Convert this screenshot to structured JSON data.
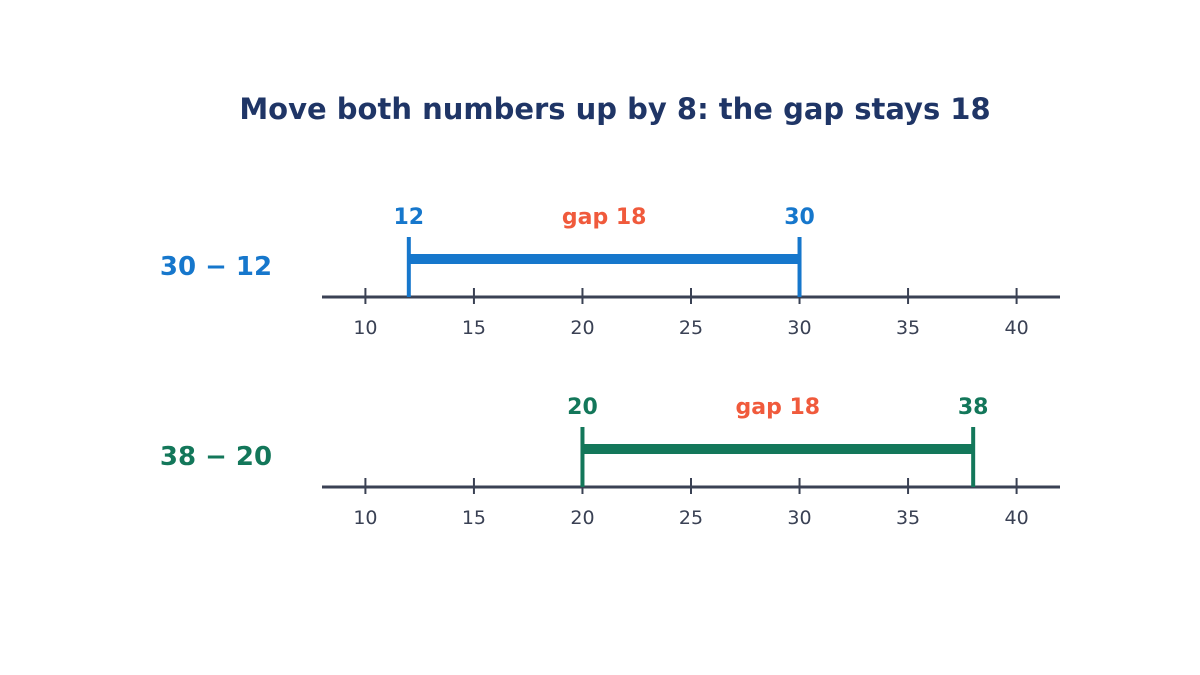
{
  "title": "Move both numbers up by 8: the gap stays 18",
  "colors": {
    "title": "#1f3566",
    "axis": "#3a4154",
    "gap": "#f05a3c",
    "row1": "#1677cc",
    "row2": "#13775a"
  },
  "axis": {
    "min": 8,
    "max": 42,
    "ticks": [
      10,
      15,
      20,
      25,
      30,
      35,
      40
    ]
  },
  "rows": [
    {
      "expression": "30 − 12",
      "start": 12,
      "end": 30,
      "start_label": "12",
      "end_label": "30",
      "gap_label": "gap 18",
      "color_key": "row1"
    },
    {
      "expression": "38 − 20",
      "start": 20,
      "end": 38,
      "start_label": "20",
      "end_label": "38",
      "gap_label": "gap 18",
      "color_key": "row2"
    }
  ]
}
